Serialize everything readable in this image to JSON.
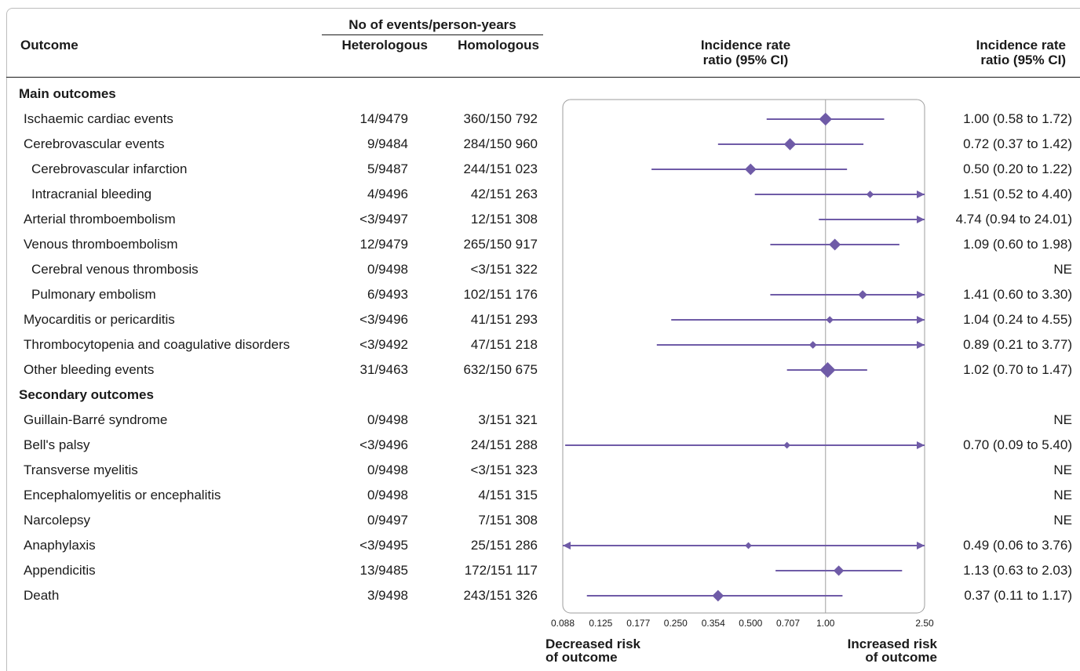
{
  "header": {
    "outcome": "Outcome",
    "events_group": "No of events/person-years",
    "heterologous": "Heterologous",
    "homologous": "Homologous",
    "irr_plot_line1": "Incidence rate",
    "irr_plot_line2": "ratio (95% CI)",
    "irr_col_line1": "Incidence rate",
    "irr_col_line2": "ratio (95% CI)"
  },
  "rows": [
    {
      "type": "section",
      "label": "Main outcomes"
    },
    {
      "type": "data",
      "label": "Ischaemic cardiac events",
      "indent": 0,
      "het": "14/9479",
      "hom": "360/150 792",
      "irr": "1.00 (0.58 to 1.72)"
    },
    {
      "type": "data",
      "label": "Cerebrovascular events",
      "indent": 0,
      "het": "9/9484",
      "hom": "284/150 960",
      "irr": "0.72 (0.37 to 1.42)"
    },
    {
      "type": "data",
      "label": "Cerebrovascular infarction",
      "indent": 1,
      "het": "5/9487",
      "hom": "244/151 023",
      "irr": "0.50 (0.20 to 1.22)"
    },
    {
      "type": "data",
      "label": "Intracranial bleeding",
      "indent": 1,
      "het": "4/9496",
      "hom": "42/151 263",
      "irr": "1.51 (0.52 to 4.40)"
    },
    {
      "type": "data",
      "label": "Arterial thromboembolism",
      "indent": 0,
      "het": "<3/9497",
      "hom": "12/151 308",
      "irr": "4.74 (0.94 to 24.01)"
    },
    {
      "type": "data",
      "label": "Venous thromboembolism",
      "indent": 0,
      "het": "12/9479",
      "hom": "265/150 917",
      "irr": "1.09 (0.60 to 1.98)"
    },
    {
      "type": "data",
      "label": "Cerebral venous thrombosis",
      "indent": 1,
      "het": "0/9498",
      "hom": "<3/151 322",
      "irr": "NE"
    },
    {
      "type": "data",
      "label": "Pulmonary embolism",
      "indent": 1,
      "het": "6/9493",
      "hom": "102/151 176",
      "irr": "1.41 (0.60 to 3.30)"
    },
    {
      "type": "data",
      "label": "Myocarditis or pericarditis",
      "indent": 0,
      "het": "<3/9496",
      "hom": "41/151 293",
      "irr": "1.04 (0.24 to 4.55)"
    },
    {
      "type": "data",
      "label": "Thrombocytopenia and coagulative disorders",
      "indent": 0,
      "het": "<3/9492",
      "hom": "47/151 218",
      "irr": "0.89 (0.21 to 3.77)"
    },
    {
      "type": "data",
      "label": "Other bleeding events",
      "indent": 0,
      "het": "31/9463",
      "hom": "632/150 675",
      "irr": "1.02 (0.70 to 1.47)"
    },
    {
      "type": "section",
      "label": "Secondary outcomes"
    },
    {
      "type": "data",
      "label": "Guillain-Barré syndrome",
      "indent": 0,
      "het": "0/9498",
      "hom": "3/151 321",
      "irr": "NE"
    },
    {
      "type": "data",
      "label": "Bell's palsy",
      "indent": 0,
      "het": "<3/9496",
      "hom": "24/151 288",
      "irr": "0.70 (0.09 to 5.40)"
    },
    {
      "type": "data",
      "label": "Transverse myelitis",
      "indent": 0,
      "het": "0/9498",
      "hom": "<3/151 323",
      "irr": "NE"
    },
    {
      "type": "data",
      "label": "Encephalomyelitis or encephalitis",
      "indent": 0,
      "het": "0/9498",
      "hom": "4/151 315",
      "irr": "NE"
    },
    {
      "type": "data",
      "label": "Narcolepsy",
      "indent": 0,
      "het": "0/9497",
      "hom": "7/151 308",
      "irr": "NE"
    },
    {
      "type": "data",
      "label": "Anaphylaxis",
      "indent": 0,
      "het": "<3/9495",
      "hom": "25/151 286",
      "irr": "0.49 (0.06 to 3.76)"
    },
    {
      "type": "data",
      "label": "Appendicitis",
      "indent": 0,
      "het": "13/9485",
      "hom": "172/151 117",
      "irr": "1.13 (0.63 to 2.03)"
    },
    {
      "type": "data",
      "label": "Death",
      "indent": 0,
      "het": "3/9498",
      "hom": "243/151 326",
      "irr": "0.37 (0.11 to 1.17)"
    }
  ],
  "chart_data": {
    "type": "forest",
    "x_scale": "log",
    "xlim": [
      0.088,
      2.5
    ],
    "x_ticks": [
      "0.088",
      "0.125",
      "0.177",
      "0.250",
      "0.354",
      "0.500",
      "0.707",
      "1.00",
      "2.50"
    ],
    "reference_line": 1.0,
    "left_label_line1": "Decreased risk",
    "left_label_line2": "of outcome",
    "right_label_line1": "Increased risk",
    "right_label_line2": "of outcome",
    "marker_color": "#6f5ba7",
    "points": [
      {
        "outcome": "Ischaemic cardiac events",
        "est": 1.0,
        "lo": 0.58,
        "hi": 1.72,
        "weight": 360
      },
      {
        "outcome": "Cerebrovascular events",
        "est": 0.72,
        "lo": 0.37,
        "hi": 1.42,
        "weight": 284
      },
      {
        "outcome": "Cerebrovascular infarction",
        "est": 0.5,
        "lo": 0.2,
        "hi": 1.22,
        "weight": 244
      },
      {
        "outcome": "Intracranial bleeding",
        "est": 1.51,
        "lo": 0.52,
        "hi": 4.4,
        "weight": 42
      },
      {
        "outcome": "Arterial thromboembolism",
        "est": 4.74,
        "lo": 0.94,
        "hi": 24.01,
        "weight": 12
      },
      {
        "outcome": "Venous thromboembolism",
        "est": 1.09,
        "lo": 0.6,
        "hi": 1.98,
        "weight": 265
      },
      {
        "outcome": "Cerebral venous thrombosis",
        "est": null,
        "lo": null,
        "hi": null,
        "weight": 0
      },
      {
        "outcome": "Pulmonary embolism",
        "est": 1.41,
        "lo": 0.6,
        "hi": 3.3,
        "weight": 102
      },
      {
        "outcome": "Myocarditis or pericarditis",
        "est": 1.04,
        "lo": 0.24,
        "hi": 4.55,
        "weight": 41
      },
      {
        "outcome": "Thrombocytopenia and coagulative disorders",
        "est": 0.89,
        "lo": 0.21,
        "hi": 3.77,
        "weight": 47
      },
      {
        "outcome": "Other bleeding events",
        "est": 1.02,
        "lo": 0.7,
        "hi": 1.47,
        "weight": 632
      },
      {
        "outcome": "Guillain-Barré syndrome",
        "est": null,
        "lo": null,
        "hi": null,
        "weight": 0
      },
      {
        "outcome": "Bell's palsy",
        "est": 0.7,
        "lo": 0.09,
        "hi": 5.4,
        "weight": 24
      },
      {
        "outcome": "Transverse myelitis",
        "est": null,
        "lo": null,
        "hi": null,
        "weight": 0
      },
      {
        "outcome": "Encephalomyelitis or encephalitis",
        "est": null,
        "lo": null,
        "hi": null,
        "weight": 0
      },
      {
        "outcome": "Narcolepsy",
        "est": null,
        "lo": null,
        "hi": null,
        "weight": 0
      },
      {
        "outcome": "Anaphylaxis",
        "est": 0.49,
        "lo": 0.06,
        "hi": 3.76,
        "weight": 25
      },
      {
        "outcome": "Appendicitis",
        "est": 1.13,
        "lo": 0.63,
        "hi": 2.03,
        "weight": 172
      },
      {
        "outcome": "Death",
        "est": 0.37,
        "lo": 0.11,
        "hi": 1.17,
        "weight": 243
      }
    ]
  }
}
